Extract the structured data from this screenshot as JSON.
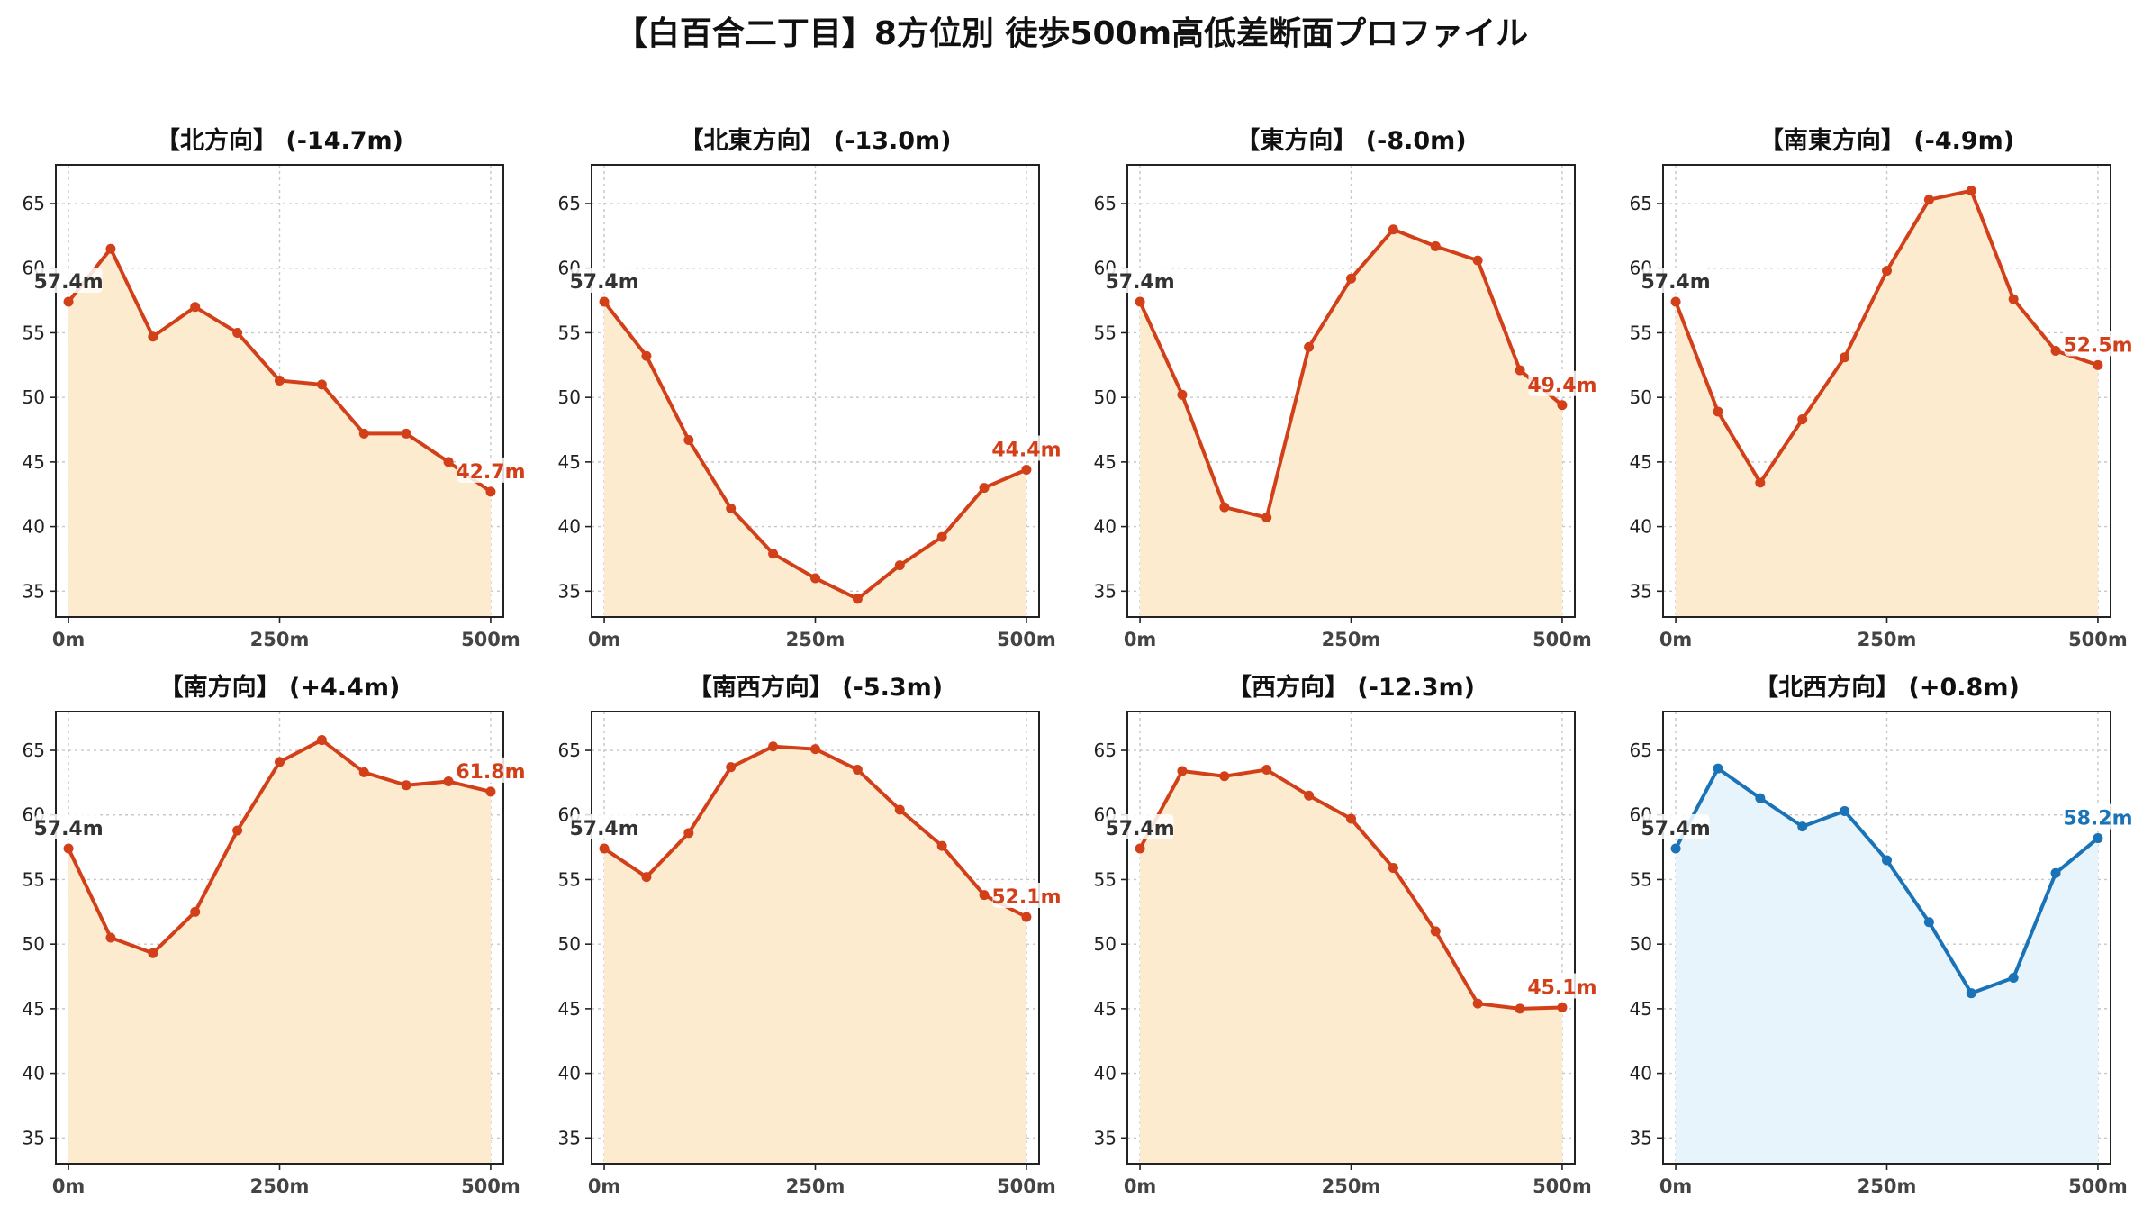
{
  "title": "【白百合二丁目】8方位別 徒歩500m高低差断面プロファイル",
  "colors": {
    "down_line": "#d2401a",
    "down_fill": "#fdebd0",
    "up_line": "#1a73b6",
    "up_fill": "#e8f4fb",
    "start_label": "#333333"
  },
  "chart_data": [
    {
      "type": "line",
      "title": "【北方向】 (-14.7m)",
      "trend": "down",
      "x": [
        0,
        50,
        100,
        150,
        200,
        250,
        300,
        350,
        400,
        450,
        500
      ],
      "y": [
        57.4,
        61.5,
        54.7,
        57.0,
        55.0,
        51.3,
        51.0,
        47.2,
        47.2,
        45.0,
        42.7
      ],
      "start_label": "57.4m",
      "end_label": "42.7m",
      "xticks": [
        0,
        250,
        500
      ],
      "xtick_labels": [
        "0m",
        "250m",
        "500m"
      ],
      "yticks": [
        35,
        40,
        45,
        50,
        55,
        60,
        65
      ],
      "ylim": [
        33,
        68
      ],
      "xlim": [
        -15,
        515
      ],
      "grid": true
    },
    {
      "type": "line",
      "title": "【北東方向】 (-13.0m)",
      "trend": "down",
      "x": [
        0,
        50,
        100,
        150,
        200,
        250,
        300,
        350,
        400,
        450,
        500
      ],
      "y": [
        57.4,
        53.2,
        46.7,
        41.4,
        37.9,
        36.0,
        34.4,
        37.0,
        39.2,
        43.0,
        44.4
      ],
      "start_label": "57.4m",
      "end_label": "44.4m",
      "xticks": [
        0,
        250,
        500
      ],
      "xtick_labels": [
        "0m",
        "250m",
        "500m"
      ],
      "yticks": [
        35,
        40,
        45,
        50,
        55,
        60,
        65
      ],
      "ylim": [
        33,
        68
      ],
      "xlim": [
        -15,
        515
      ],
      "grid": true
    },
    {
      "type": "line",
      "title": "【東方向】 (-8.0m)",
      "trend": "down",
      "x": [
        0,
        50,
        100,
        150,
        200,
        250,
        300,
        350,
        400,
        450,
        500
      ],
      "y": [
        57.4,
        50.2,
        41.5,
        40.7,
        53.9,
        59.2,
        63.0,
        61.7,
        60.6,
        52.1,
        49.4
      ],
      "start_label": "57.4m",
      "end_label": "49.4m",
      "xticks": [
        0,
        250,
        500
      ],
      "xtick_labels": [
        "0m",
        "250m",
        "500m"
      ],
      "yticks": [
        35,
        40,
        45,
        50,
        55,
        60,
        65
      ],
      "ylim": [
        33,
        68
      ],
      "xlim": [
        -15,
        515
      ],
      "grid": true
    },
    {
      "type": "line",
      "title": "【南東方向】 (-4.9m)",
      "trend": "down",
      "x": [
        0,
        50,
        100,
        150,
        200,
        250,
        300,
        350,
        400,
        450,
        500
      ],
      "y": [
        57.4,
        48.9,
        43.4,
        48.3,
        53.1,
        59.8,
        65.3,
        66.0,
        57.6,
        53.6,
        52.5
      ],
      "start_label": "57.4m",
      "end_label": "52.5m",
      "xticks": [
        0,
        250,
        500
      ],
      "xtick_labels": [
        "0m",
        "250m",
        "500m"
      ],
      "yticks": [
        35,
        40,
        45,
        50,
        55,
        60,
        65
      ],
      "ylim": [
        33,
        68
      ],
      "xlim": [
        -15,
        515
      ],
      "grid": true
    },
    {
      "type": "line",
      "title": "【南方向】 (+4.4m)",
      "trend": "down",
      "x": [
        0,
        50,
        100,
        150,
        200,
        250,
        300,
        350,
        400,
        450,
        500
      ],
      "y": [
        57.4,
        50.5,
        49.3,
        52.5,
        58.8,
        64.1,
        65.8,
        63.3,
        62.3,
        62.6,
        61.8
      ],
      "start_label": "57.4m",
      "end_label": "61.8m",
      "xticks": [
        0,
        250,
        500
      ],
      "xtick_labels": [
        "0m",
        "250m",
        "500m"
      ],
      "yticks": [
        35,
        40,
        45,
        50,
        55,
        60,
        65
      ],
      "ylim": [
        33,
        68
      ],
      "xlim": [
        -15,
        515
      ],
      "grid": true
    },
    {
      "type": "line",
      "title": "【南西方向】 (-5.3m)",
      "trend": "down",
      "x": [
        0,
        50,
        100,
        150,
        200,
        250,
        300,
        350,
        400,
        450,
        500
      ],
      "y": [
        57.4,
        55.2,
        58.6,
        63.7,
        65.3,
        65.1,
        63.5,
        60.4,
        57.6,
        53.8,
        52.1
      ],
      "start_label": "57.4m",
      "end_label": "52.1m",
      "xticks": [
        0,
        250,
        500
      ],
      "xtick_labels": [
        "0m",
        "250m",
        "500m"
      ],
      "yticks": [
        35,
        40,
        45,
        50,
        55,
        60,
        65
      ],
      "ylim": [
        33,
        68
      ],
      "xlim": [
        -15,
        515
      ],
      "grid": true
    },
    {
      "type": "line",
      "title": "【西方向】 (-12.3m)",
      "trend": "down",
      "x": [
        0,
        50,
        100,
        150,
        200,
        250,
        300,
        350,
        400,
        450,
        500
      ],
      "y": [
        57.4,
        63.4,
        63.0,
        63.5,
        61.5,
        59.7,
        55.9,
        51.0,
        45.4,
        45.0,
        45.1
      ],
      "start_label": "57.4m",
      "end_label": "45.1m",
      "xticks": [
        0,
        250,
        500
      ],
      "xtick_labels": [
        "0m",
        "250m",
        "500m"
      ],
      "yticks": [
        35,
        40,
        45,
        50,
        55,
        60,
        65
      ],
      "ylim": [
        33,
        68
      ],
      "xlim": [
        -15,
        515
      ],
      "grid": true
    },
    {
      "type": "line",
      "title": "【北西方向】 (+0.8m)",
      "trend": "up",
      "x": [
        0,
        50,
        100,
        150,
        200,
        250,
        300,
        350,
        400,
        450,
        500
      ],
      "y": [
        57.4,
        63.6,
        61.3,
        59.1,
        60.3,
        56.5,
        51.7,
        46.2,
        47.4,
        55.5,
        58.2
      ],
      "start_label": "57.4m",
      "end_label": "58.2m",
      "xticks": [
        0,
        250,
        500
      ],
      "xtick_labels": [
        "0m",
        "250m",
        "500m"
      ],
      "yticks": [
        35,
        40,
        45,
        50,
        55,
        60,
        65
      ],
      "ylim": [
        33,
        68
      ],
      "xlim": [
        -15,
        515
      ],
      "grid": true
    }
  ]
}
